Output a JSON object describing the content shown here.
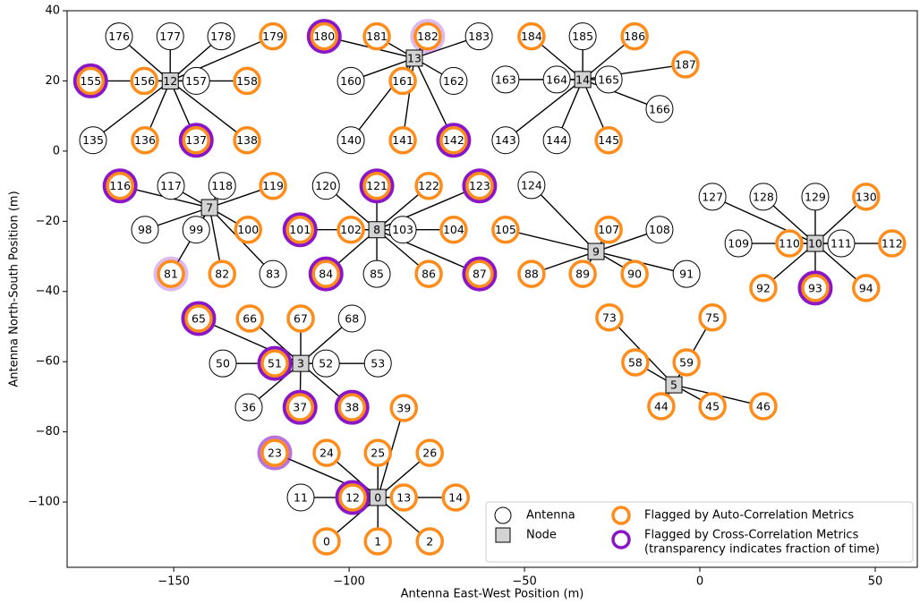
{
  "chart_data": {
    "type": "scatter",
    "xlabel": "Antenna East-West Position (m)",
    "ylabel": "Antenna North-South Position (m)",
    "xlim": [
      -180.4,
      62
    ],
    "ylim": [
      -118.6,
      40
    ],
    "xticks": [
      {
        "value": -150,
        "label": "−150"
      },
      {
        "value": -100,
        "label": "−100"
      },
      {
        "value": -50,
        "label": "−50"
      },
      0,
      50
    ],
    "yticks": [
      {
        "value": -100,
        "label": "−100"
      },
      {
        "value": -80,
        "label": "−80"
      },
      {
        "value": -60,
        "label": "−60"
      },
      {
        "value": -40,
        "label": "−40"
      },
      {
        "value": -20,
        "label": "−20"
      },
      0,
      20,
      40
    ],
    "auto_color": "#ff8c1a",
    "cross_color": "#8a16c8",
    "legend": {
      "antenna": "Antenna",
      "node": "Node",
      "auto": "Flagged by Auto-Correlation Metrics",
      "cross": [
        "Flagged by Cross-Correlation Metrics",
        "(transparency indicates fraction of time)"
      ]
    },
    "nodes": [
      {
        "name": "0",
        "x": -91.8,
        "y": -98.7
      },
      {
        "name": "3",
        "x": -113.8,
        "y": -60.5
      },
      {
        "name": "5",
        "x": -7.4,
        "y": -66.6
      },
      {
        "name": "7",
        "x": -139.8,
        "y": -16.1
      },
      {
        "name": "8",
        "x": -92.1,
        "y": -22.4
      },
      {
        "name": "9",
        "x": -29.6,
        "y": -28.6
      },
      {
        "name": "10",
        "x": 32.9,
        "y": -26.3
      },
      {
        "name": "12",
        "x": -151,
        "y": 20
      },
      {
        "name": "13",
        "x": -81.4,
        "y": 26.5
      },
      {
        "name": "14",
        "x": -33.4,
        "y": 20.4
      }
    ],
    "antennas": [
      {
        "name": "176",
        "x": -165.6,
        "y": 32.7,
        "node": 7,
        "auto": false,
        "cross": 0
      },
      {
        "name": "177",
        "x": -151,
        "y": 32.7,
        "node": 7,
        "auto": false,
        "cross": 0
      },
      {
        "name": "178",
        "x": -136.5,
        "y": 32.7,
        "node": 7,
        "auto": false,
        "cross": 0
      },
      {
        "name": "179",
        "x": -121.7,
        "y": 32.7,
        "node": 7,
        "auto": true,
        "cross": 0
      },
      {
        "name": "155",
        "x": -173.7,
        "y": 20,
        "node": 7,
        "auto": true,
        "cross": 1
      },
      {
        "name": "156",
        "x": -158.4,
        "y": 20,
        "node": 7,
        "auto": true,
        "cross": 0
      },
      {
        "name": "157",
        "x": -143.6,
        "y": 20,
        "node": 7,
        "auto": false,
        "cross": 0
      },
      {
        "name": "158",
        "x": -129.1,
        "y": 20,
        "node": 7,
        "auto": true,
        "cross": 0
      },
      {
        "name": "135",
        "x": -173,
        "y": 3.1,
        "node": 7,
        "auto": false,
        "cross": 0
      },
      {
        "name": "136",
        "x": -158.2,
        "y": 3.1,
        "node": 7,
        "auto": true,
        "cross": 0
      },
      {
        "name": "137",
        "x": -143.6,
        "y": 3.1,
        "node": 7,
        "auto": true,
        "cross": 1
      },
      {
        "name": "138",
        "x": -129.1,
        "y": 3.1,
        "node": 7,
        "auto": true,
        "cross": 0
      },
      {
        "name": "180",
        "x": -107.1,
        "y": 32.7,
        "node": 8,
        "auto": true,
        "cross": 1
      },
      {
        "name": "181",
        "x": -92.1,
        "y": 32.7,
        "node": 8,
        "auto": true,
        "cross": 0
      },
      {
        "name": "182",
        "x": -77.6,
        "y": 32.7,
        "node": 8,
        "auto": true,
        "cross": 0.3
      },
      {
        "name": "183",
        "x": -63,
        "y": 32.7,
        "node": 8,
        "auto": false,
        "cross": 0
      },
      {
        "name": "160",
        "x": -99.5,
        "y": 20,
        "node": 8,
        "auto": false,
        "cross": 0
      },
      {
        "name": "161",
        "x": -84.7,
        "y": 20,
        "node": 8,
        "auto": true,
        "cross": 0
      },
      {
        "name": "162",
        "x": -70.2,
        "y": 20,
        "node": 8,
        "auto": false,
        "cross": 0
      },
      {
        "name": "140",
        "x": -99.5,
        "y": 3.1,
        "node": 8,
        "auto": false,
        "cross": 0
      },
      {
        "name": "141",
        "x": -84.7,
        "y": 3.1,
        "node": 8,
        "auto": true,
        "cross": 0
      },
      {
        "name": "142",
        "x": -70.2,
        "y": 3.1,
        "node": 8,
        "auto": true,
        "cross": 1
      },
      {
        "name": "184",
        "x": -48,
        "y": 32.7,
        "node": 9,
        "auto": true,
        "cross": 0
      },
      {
        "name": "185",
        "x": -33.4,
        "y": 32.7,
        "node": 9,
        "auto": false,
        "cross": 0
      },
      {
        "name": "186",
        "x": -18.6,
        "y": 32.7,
        "node": 9,
        "auto": true,
        "cross": 0
      },
      {
        "name": "187",
        "x": -4.1,
        "y": 24.7,
        "node": 9,
        "auto": true,
        "cross": 0
      },
      {
        "name": "163",
        "x": -55.4,
        "y": 20.4,
        "node": 9,
        "auto": false,
        "cross": 0
      },
      {
        "name": "164",
        "x": -40.8,
        "y": 20.4,
        "node": 9,
        "auto": false,
        "cross": 0
      },
      {
        "name": "165",
        "x": -26,
        "y": 20.4,
        "node": 9,
        "auto": false,
        "cross": 0
      },
      {
        "name": "166",
        "x": -11.5,
        "y": 12,
        "node": 9,
        "auto": false,
        "cross": 0
      },
      {
        "name": "143",
        "x": -55.4,
        "y": 3.1,
        "node": 9,
        "auto": false,
        "cross": 0
      },
      {
        "name": "144",
        "x": -40.8,
        "y": 3.1,
        "node": 9,
        "auto": false,
        "cross": 0
      },
      {
        "name": "145",
        "x": -26,
        "y": 3.1,
        "node": 9,
        "auto": true,
        "cross": 0
      },
      {
        "name": "116",
        "x": -165.3,
        "y": -9.9,
        "node": 3,
        "auto": true,
        "cross": 1
      },
      {
        "name": "117",
        "x": -150.8,
        "y": -9.9,
        "node": 3,
        "auto": false,
        "cross": 0
      },
      {
        "name": "118",
        "x": -136.2,
        "y": -9.9,
        "node": 3,
        "auto": false,
        "cross": 0
      },
      {
        "name": "119",
        "x": -121.7,
        "y": -9.9,
        "node": 3,
        "auto": true,
        "cross": 0
      },
      {
        "name": "98",
        "x": -158.2,
        "y": -22.4,
        "node": 3,
        "auto": false,
        "cross": 0
      },
      {
        "name": "99",
        "x": -143.6,
        "y": -22.4,
        "node": 3,
        "auto": false,
        "cross": 0
      },
      {
        "name": "100",
        "x": -128.8,
        "y": -22.4,
        "node": 3,
        "auto": true,
        "cross": 0
      },
      {
        "name": "81",
        "x": -150.8,
        "y": -35,
        "node": 3,
        "auto": true,
        "cross": 0.3
      },
      {
        "name": "82",
        "x": -136.2,
        "y": -35,
        "node": 3,
        "auto": true,
        "cross": 0
      },
      {
        "name": "83",
        "x": -121.7,
        "y": -35,
        "node": 3,
        "auto": false,
        "cross": 0
      },
      {
        "name": "120",
        "x": -106.6,
        "y": -9.9,
        "node": 4,
        "auto": false,
        "cross": 0
      },
      {
        "name": "121",
        "x": -92.1,
        "y": -9.9,
        "node": 4,
        "auto": true,
        "cross": 1
      },
      {
        "name": "122",
        "x": -77.3,
        "y": -9.9,
        "node": 4,
        "auto": true,
        "cross": 0
      },
      {
        "name": "123",
        "x": -62.8,
        "y": -9.9,
        "node": 4,
        "auto": true,
        "cross": 1
      },
      {
        "name": "101",
        "x": -114,
        "y": -22.4,
        "node": 4,
        "auto": true,
        "cross": 1
      },
      {
        "name": "102",
        "x": -99.5,
        "y": -22.4,
        "node": 4,
        "auto": true,
        "cross": 0
      },
      {
        "name": "103",
        "x": -84.7,
        "y": -22.4,
        "node": 4,
        "auto": false,
        "cross": 0
      },
      {
        "name": "104",
        "x": -70.2,
        "y": -22.4,
        "node": 4,
        "auto": true,
        "cross": 0
      },
      {
        "name": "84",
        "x": -106.6,
        "y": -35,
        "node": 4,
        "auto": true,
        "cross": 1
      },
      {
        "name": "85",
        "x": -92.1,
        "y": -35,
        "node": 4,
        "auto": false,
        "cross": 0
      },
      {
        "name": "86",
        "x": -77.3,
        "y": -35,
        "node": 4,
        "auto": true,
        "cross": 0
      },
      {
        "name": "87",
        "x": -62.8,
        "y": -35,
        "node": 4,
        "auto": true,
        "cross": 1
      },
      {
        "name": "124",
        "x": -48,
        "y": -9.7,
        "node": 5,
        "auto": false,
        "cross": 0
      },
      {
        "name": "105",
        "x": -55.4,
        "y": -22.4,
        "node": 5,
        "auto": true,
        "cross": 0
      },
      {
        "name": "107",
        "x": -26,
        "y": -22.4,
        "node": 5,
        "auto": true,
        "cross": 0
      },
      {
        "name": "108",
        "x": -11.5,
        "y": -22.4,
        "node": 5,
        "auto": false,
        "cross": 0
      },
      {
        "name": "88",
        "x": -48,
        "y": -35,
        "node": 5,
        "auto": true,
        "cross": 0
      },
      {
        "name": "89",
        "x": -33.4,
        "y": -35,
        "node": 5,
        "auto": true,
        "cross": 0
      },
      {
        "name": "90",
        "x": -18.6,
        "y": -35,
        "node": 5,
        "auto": true,
        "cross": 0
      },
      {
        "name": "91",
        "x": -3.8,
        "y": -35,
        "node": 5,
        "auto": false,
        "cross": 0
      },
      {
        "name": "127",
        "x": 3.6,
        "y": -13,
        "node": 6,
        "auto": false,
        "cross": 0
      },
      {
        "name": "128",
        "x": 18.1,
        "y": -13,
        "node": 6,
        "auto": false,
        "cross": 0
      },
      {
        "name": "129",
        "x": 32.9,
        "y": -13,
        "node": 6,
        "auto": false,
        "cross": 0
      },
      {
        "name": "130",
        "x": 47.4,
        "y": -13,
        "node": 6,
        "auto": true,
        "cross": 0
      },
      {
        "name": "109",
        "x": 11,
        "y": -26.3,
        "node": 6,
        "auto": false,
        "cross": 0
      },
      {
        "name": "110",
        "x": 25.5,
        "y": -26.3,
        "node": 6,
        "auto": true,
        "cross": 0
      },
      {
        "name": "111",
        "x": 40.3,
        "y": -26.3,
        "node": 6,
        "auto": false,
        "cross": 0
      },
      {
        "name": "112",
        "x": 54.8,
        "y": -26.3,
        "node": 6,
        "auto": true,
        "cross": 0
      },
      {
        "name": "92",
        "x": 18.1,
        "y": -39,
        "node": 6,
        "auto": true,
        "cross": 0
      },
      {
        "name": "93",
        "x": 32.9,
        "y": -39,
        "node": 6,
        "auto": true,
        "cross": 1
      },
      {
        "name": "94",
        "x": 47.4,
        "y": -39,
        "node": 6,
        "auto": true,
        "cross": 0
      },
      {
        "name": "65",
        "x": -142.9,
        "y": -47.7,
        "node": 1,
        "auto": true,
        "cross": 1
      },
      {
        "name": "66",
        "x": -128.3,
        "y": -47.7,
        "node": 1,
        "auto": true,
        "cross": 0
      },
      {
        "name": "67",
        "x": -113.8,
        "y": -47.7,
        "node": 1,
        "auto": true,
        "cross": 0
      },
      {
        "name": "68",
        "x": -99.2,
        "y": -47.7,
        "node": 1,
        "auto": false,
        "cross": 0
      },
      {
        "name": "50",
        "x": -136,
        "y": -60.5,
        "node": 1,
        "auto": false,
        "cross": 0
      },
      {
        "name": "51",
        "x": -121.2,
        "y": -60.5,
        "node": 1,
        "auto": true,
        "cross": 1
      },
      {
        "name": "52",
        "x": -106.6,
        "y": -60.5,
        "node": 1,
        "auto": false,
        "cross": 0
      },
      {
        "name": "53",
        "x": -91.8,
        "y": -60.5,
        "node": 1,
        "auto": false,
        "cross": 0
      },
      {
        "name": "36",
        "x": -128.6,
        "y": -73,
        "node": 1,
        "auto": false,
        "cross": 0
      },
      {
        "name": "37",
        "x": -114,
        "y": -73,
        "node": 1,
        "auto": true,
        "cross": 1
      },
      {
        "name": "38",
        "x": -99.2,
        "y": -73,
        "node": 1,
        "auto": true,
        "cross": 1
      },
      {
        "name": "73",
        "x": -25.8,
        "y": -47.4,
        "node": 2,
        "auto": true,
        "cross": 0
      },
      {
        "name": "75",
        "x": 3.6,
        "y": -47.4,
        "node": 2,
        "auto": true,
        "cross": 0
      },
      {
        "name": "58",
        "x": -18.4,
        "y": -60.2,
        "node": 2,
        "auto": true,
        "cross": 0
      },
      {
        "name": "59",
        "x": -3.8,
        "y": -60.2,
        "node": 2,
        "auto": true,
        "cross": 0
      },
      {
        "name": "44",
        "x": -11,
        "y": -72.7,
        "node": 2,
        "auto": true,
        "cross": 0
      },
      {
        "name": "45",
        "x": 3.6,
        "y": -72.7,
        "node": 2,
        "auto": true,
        "cross": 0
      },
      {
        "name": "46",
        "x": 18.1,
        "y": -72.7,
        "node": 2,
        "auto": true,
        "cross": 0
      },
      {
        "name": "39",
        "x": -84.4,
        "y": -73.2,
        "node": 0,
        "auto": true,
        "cross": 0
      },
      {
        "name": "23",
        "x": -121.2,
        "y": -86,
        "node": 0,
        "auto": true,
        "cross": 0.6
      },
      {
        "name": "24",
        "x": -106.4,
        "y": -86,
        "node": 0,
        "auto": true,
        "cross": 0
      },
      {
        "name": "25",
        "x": -91.8,
        "y": -86,
        "node": 0,
        "auto": true,
        "cross": 0
      },
      {
        "name": "26",
        "x": -77,
        "y": -86,
        "node": 0,
        "auto": true,
        "cross": 0
      },
      {
        "name": "11",
        "x": -113.8,
        "y": -98.7,
        "node": 0,
        "auto": false,
        "cross": 0
      },
      {
        "name": "12",
        "x": -99,
        "y": -98.7,
        "node": 0,
        "auto": true,
        "cross": 1
      },
      {
        "name": "13",
        "x": -84.4,
        "y": -98.7,
        "node": 0,
        "auto": true,
        "cross": 0
      },
      {
        "name": "14",
        "x": -69.6,
        "y": -98.7,
        "node": 0,
        "auto": true,
        "cross": 0
      },
      {
        "name": "0",
        "x": -106.4,
        "y": -111.2,
        "node": 0,
        "auto": true,
        "cross": 0
      },
      {
        "name": "1",
        "x": -91.8,
        "y": -111.2,
        "node": 0,
        "auto": true,
        "cross": 0
      },
      {
        "name": "2",
        "x": -77,
        "y": -111.2,
        "node": 0,
        "auto": true,
        "cross": 0
      }
    ]
  }
}
